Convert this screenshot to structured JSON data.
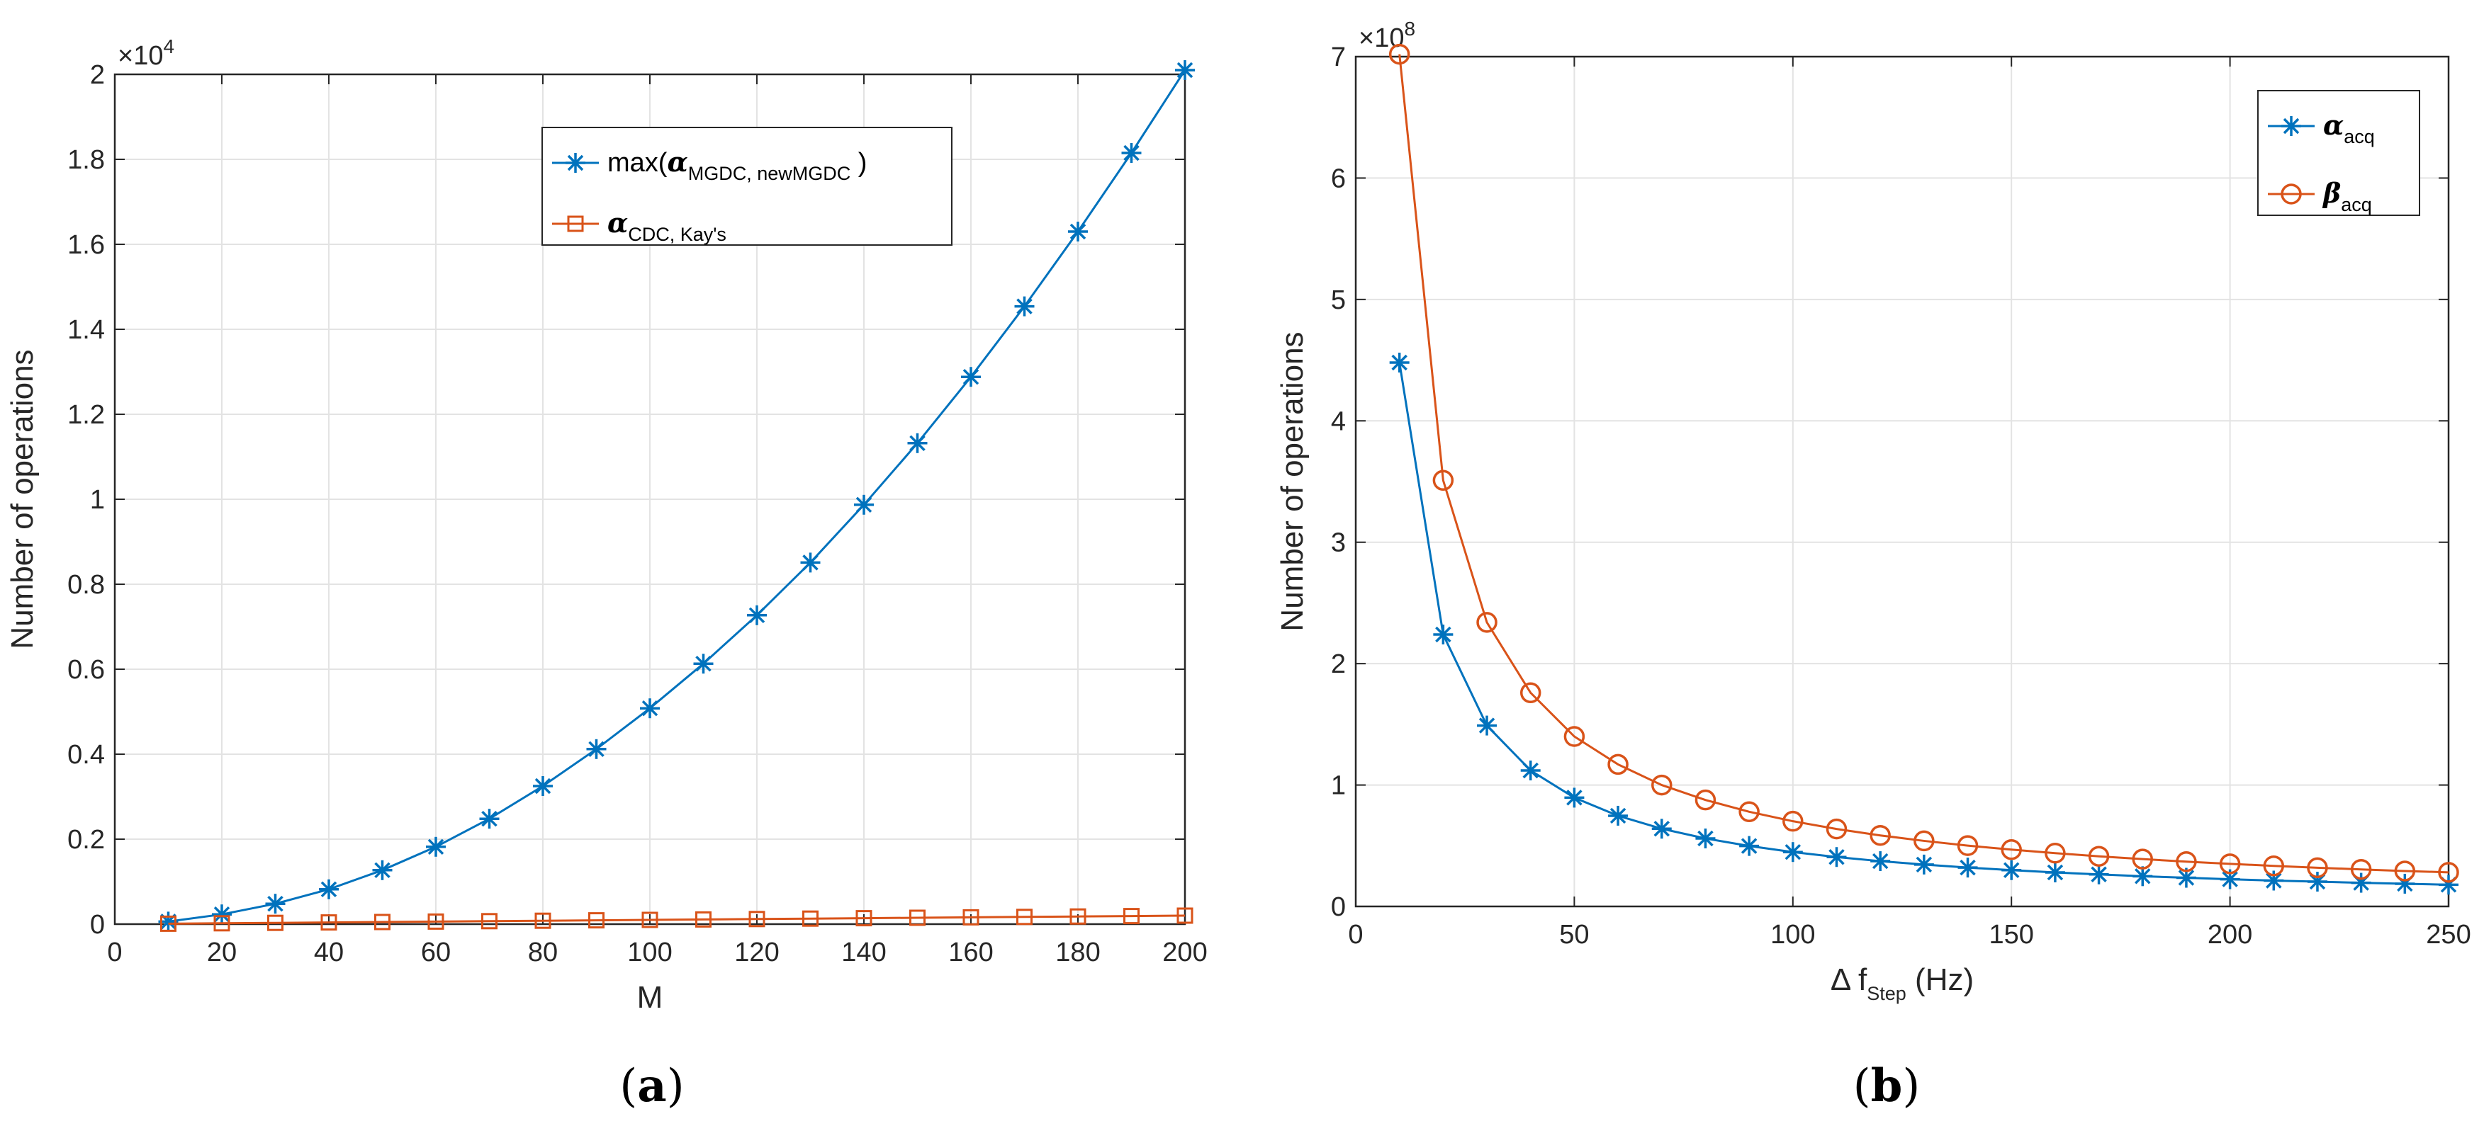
{
  "chart_data": [
    {
      "type": "line",
      "caption_letter": "a",
      "xlabel": "M",
      "ylabel": "Number of operations",
      "xlim": [
        0,
        200
      ],
      "ylim": [
        0,
        20000
      ],
      "xticks": [
        0,
        20,
        40,
        60,
        80,
        100,
        120,
        140,
        160,
        180,
        200
      ],
      "yticks": [
        0,
        2000,
        4000,
        6000,
        8000,
        10000,
        12000,
        14000,
        16000,
        18000,
        20000
      ],
      "ytick_labels": [
        "0",
        "0.2",
        "0.4",
        "0.6",
        "0.8",
        "1",
        "1.2",
        "1.4",
        "1.6",
        "1.8",
        "2"
      ],
      "y_exponent_base": "×10",
      "y_exponent_power": "4",
      "grid": true,
      "legend_position": "top-right",
      "series": [
        {
          "name": "max(α MGDC, newMGDC)",
          "legend_prefix": "max(",
          "legend_greek": "α",
          "legend_sub": "MGDC, newMGDC",
          "legend_suffix": " )",
          "color": "#0072BD",
          "marker": "asterisk",
          "x": [
            10,
            20,
            30,
            40,
            50,
            60,
            70,
            80,
            90,
            100,
            110,
            120,
            130,
            140,
            150,
            160,
            170,
            180,
            190,
            200
          ],
          "values": [
            60,
            230,
            480,
            820,
            1270,
            1820,
            2480,
            3250,
            4120,
            5080,
            6130,
            7270,
            8510,
            9870,
            11320,
            12880,
            14540,
            16300,
            18150,
            20100
          ]
        },
        {
          "name": "α CDC, Kay's",
          "legend_prefix": "",
          "legend_greek": "α",
          "legend_sub": "CDC, Kay's",
          "legend_suffix": "",
          "color": "#D95319",
          "marker": "square",
          "x": [
            10,
            20,
            30,
            40,
            50,
            60,
            70,
            80,
            90,
            100,
            110,
            120,
            130,
            140,
            150,
            160,
            170,
            180,
            190,
            200
          ],
          "values": [
            10,
            20,
            30,
            40,
            50,
            60,
            70,
            80,
            90,
            100,
            110,
            120,
            130,
            140,
            150,
            160,
            170,
            180,
            190,
            200
          ]
        }
      ]
    },
    {
      "type": "line",
      "caption_letter": "b",
      "xlabel_prefix": "Δ f",
      "xlabel_sub": "Step",
      "xlabel_suffix": " (Hz)",
      "ylabel": "Number of operations",
      "xlim": [
        0,
        250
      ],
      "ylim": [
        0,
        700000000
      ],
      "xticks": [
        0,
        50,
        100,
        150,
        200,
        250
      ],
      "yticks": [
        0,
        100000000,
        200000000,
        300000000,
        400000000,
        500000000,
        600000000,
        700000000
      ],
      "ytick_labels": [
        "0",
        "1",
        "2",
        "3",
        "4",
        "5",
        "6",
        "7"
      ],
      "y_exponent_base": "×10",
      "y_exponent_power": "8",
      "grid": true,
      "legend_position": "top-right",
      "series": [
        {
          "name": "α acq",
          "legend_greek": "α",
          "legend_sub": "acq",
          "color": "#0072BD",
          "marker": "asterisk",
          "x": [
            10,
            20,
            30,
            40,
            50,
            60,
            70,
            80,
            90,
            100,
            110,
            120,
            130,
            140,
            150,
            160,
            170,
            180,
            190,
            200,
            210,
            220,
            230,
            240,
            250
          ],
          "values": [
            448000000,
            224000000,
            149000000,
            112000000,
            89600000,
            74700000,
            64000000,
            56000000,
            49800000,
            44800000,
            40700000,
            37300000,
            34500000,
            32000000,
            29900000,
            28000000,
            26400000,
            24900000,
            23600000,
            22400000,
            21300000,
            20400000,
            19500000,
            18700000,
            17900000
          ]
        },
        {
          "name": "β acq",
          "legend_greek": "β",
          "legend_sub": "acq",
          "color": "#D95319",
          "marker": "circle",
          "x": [
            10,
            20,
            30,
            40,
            50,
            60,
            70,
            80,
            90,
            100,
            110,
            120,
            130,
            140,
            150,
            160,
            170,
            180,
            190,
            200,
            210,
            220,
            230,
            240,
            250
          ],
          "values": [
            702000000,
            351000000,
            234000000,
            176000000,
            140000000,
            117000000,
            100000000,
            87700000,
            78000000,
            70200000,
            63800000,
            58500000,
            54000000,
            50100000,
            46800000,
            43900000,
            41300000,
            39000000,
            36900000,
            35100000,
            33400000,
            31900000,
            30500000,
            29200000,
            28100000
          ]
        }
      ]
    }
  ]
}
